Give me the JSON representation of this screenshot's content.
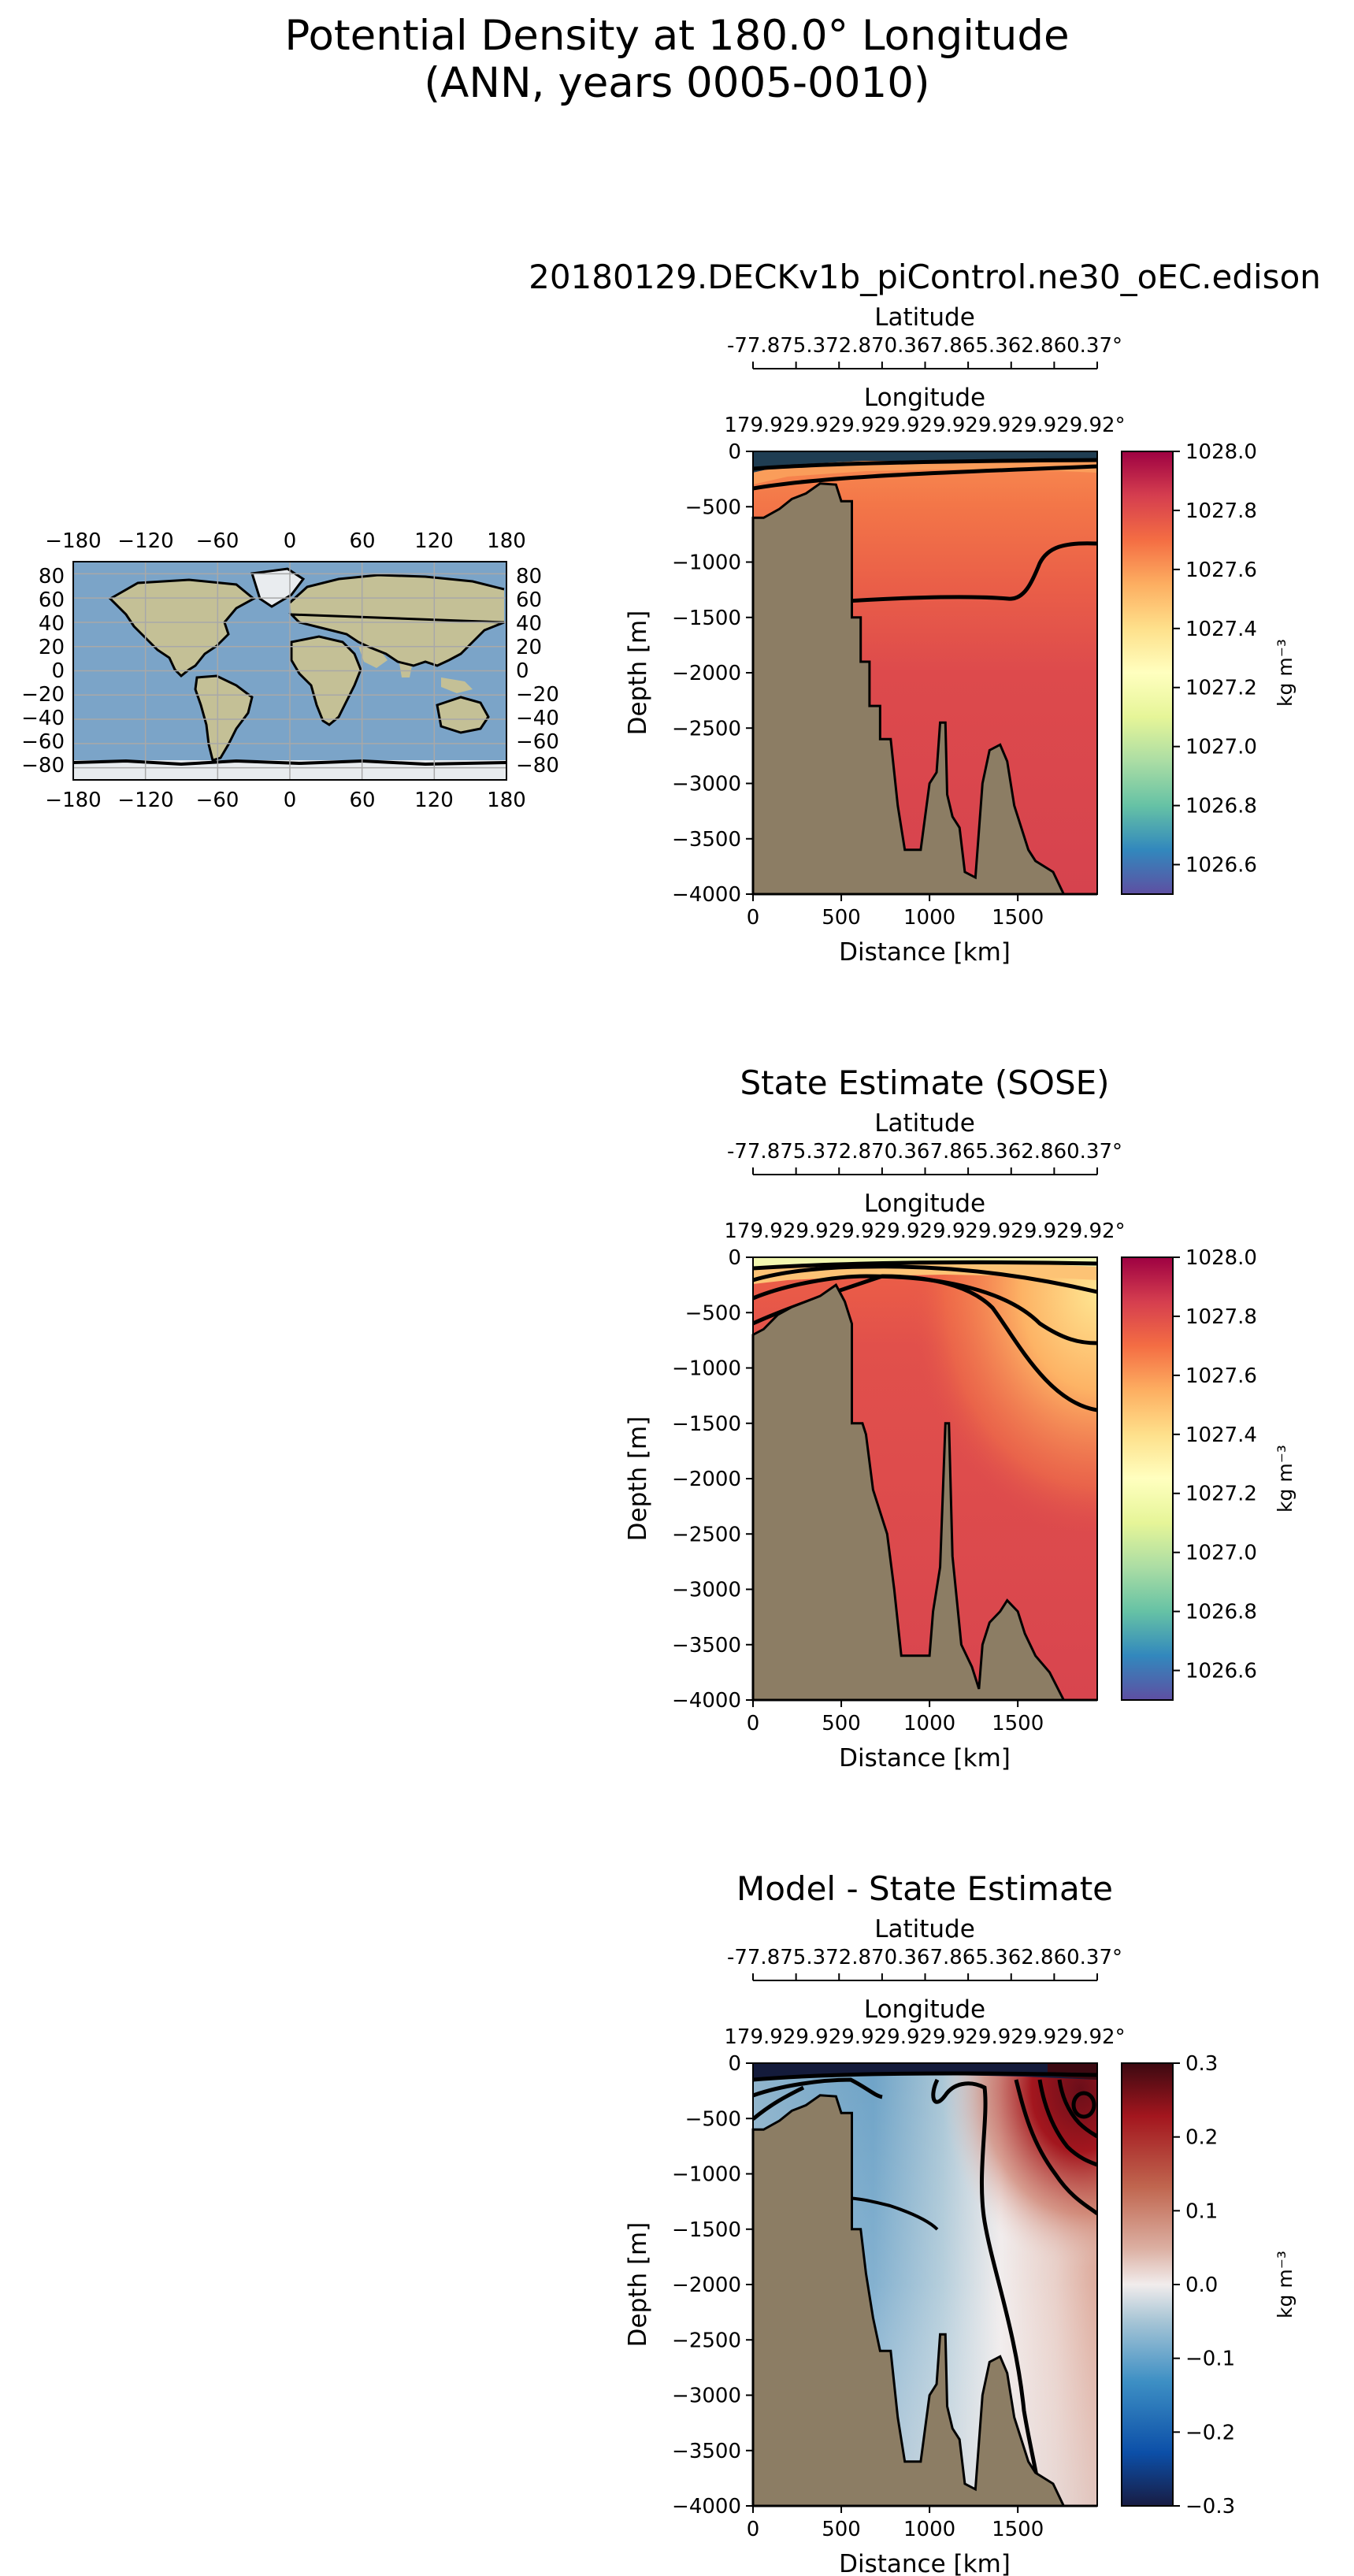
{
  "figure": {
    "title_line1": "Potential Density at 180.0° Longitude",
    "title_line2": "(ANN, years 0005-0010)"
  },
  "map": {
    "x_ticks": [
      "−180",
      "−120",
      "−60",
      "0",
      "60",
      "120",
      "180"
    ],
    "y_ticks": [
      "80",
      "60",
      "40",
      "20",
      "0",
      "−20",
      "−40",
      "−60",
      "−80"
    ],
    "colors": {
      "ocean": "#7ba4c8",
      "land": "#c4c096",
      "ice": "#e8ecef",
      "grid": "#a8a8a8"
    }
  },
  "chart_data": [
    {
      "type": "heatmap",
      "title": "20180129.DECKv1b_piControl.ne30_oEC.edison",
      "xlabel": "Distance [km]",
      "ylabel": "Depth [m]",
      "top_axis_1_label": "Latitude",
      "top_axis_1_ticks": "-77.875.372.870.367.865.362.860.37°",
      "top_axis_2_label": "Longitude",
      "top_axis_2_ticks": "179.929.929.929.929.929.929.929.92°",
      "xlim": [
        0,
        1950
      ],
      "ylim": [
        -4000,
        0
      ],
      "x_ticks": [
        "0",
        "500",
        "1000",
        "1500"
      ],
      "y_ticks": [
        "0",
        "−500",
        "−1000",
        "−1500",
        "−2000",
        "−2500",
        "−3000",
        "−3500",
        "−4000"
      ],
      "colorbar_label": "kg m⁻³",
      "colorbar_range": [
        1026.5,
        1028.0
      ],
      "colorbar_ticks": [
        "1028.0",
        "1027.8",
        "1027.6",
        "1027.4",
        "1027.2",
        "1027.0",
        "1026.8",
        "1026.6"
      ],
      "colormap": "Spectral_r",
      "bathymetry_km_depth": [
        [
          0,
          -600
        ],
        [
          60,
          -600
        ],
        [
          150,
          -520
        ],
        [
          220,
          -430
        ],
        [
          300,
          -380
        ],
        [
          380,
          -290
        ],
        [
          470,
          -300
        ],
        [
          500,
          -450
        ],
        [
          560,
          -450
        ],
        [
          560,
          -1500
        ],
        [
          610,
          -1500
        ],
        [
          610,
          -1900
        ],
        [
          660,
          -1900
        ],
        [
          660,
          -2300
        ],
        [
          720,
          -2300
        ],
        [
          720,
          -2600
        ],
        [
          780,
          -2600
        ],
        [
          820,
          -3200
        ],
        [
          860,
          -3600
        ],
        [
          950,
          -3600
        ],
        [
          1000,
          -3000
        ],
        [
          1040,
          -2900
        ],
        [
          1060,
          -2450
        ],
        [
          1090,
          -2450
        ],
        [
          1100,
          -3100
        ],
        [
          1130,
          -3300
        ],
        [
          1170,
          -3400
        ],
        [
          1200,
          -3800
        ],
        [
          1260,
          -3850
        ],
        [
          1300,
          -3000
        ],
        [
          1340,
          -2700
        ],
        [
          1400,
          -2650
        ],
        [
          1440,
          -2800
        ],
        [
          1480,
          -3200
        ],
        [
          1520,
          -3400
        ],
        [
          1560,
          -3600
        ],
        [
          1600,
          -3700
        ],
        [
          1650,
          -3750
        ],
        [
          1700,
          -3800
        ],
        [
          1760,
          -4000
        ]
      ]
    },
    {
      "type": "heatmap",
      "title": "State Estimate (SOSE)",
      "xlabel": "Distance [km]",
      "ylabel": "Depth [m]",
      "top_axis_1_label": "Latitude",
      "top_axis_1_ticks": "-77.875.372.870.367.865.362.860.37°",
      "top_axis_2_label": "Longitude",
      "top_axis_2_ticks": "179.929.929.929.929.929.929.929.92°",
      "xlim": [
        0,
        1950
      ],
      "ylim": [
        -4000,
        0
      ],
      "x_ticks": [
        "0",
        "500",
        "1000",
        "1500"
      ],
      "y_ticks": [
        "0",
        "−500",
        "−1000",
        "−1500",
        "−2000",
        "−2500",
        "−3000",
        "−3500",
        "−4000"
      ],
      "colorbar_label": "kg m⁻³",
      "colorbar_range": [
        1026.5,
        1028.0
      ],
      "colorbar_ticks": [
        "1028.0",
        "1027.8",
        "1027.6",
        "1027.4",
        "1027.2",
        "1027.0",
        "1026.8",
        "1026.6"
      ],
      "colormap": "Spectral_r",
      "bathymetry_km_depth": [
        [
          0,
          -700
        ],
        [
          60,
          -650
        ],
        [
          140,
          -520
        ],
        [
          220,
          -450
        ],
        [
          300,
          -400
        ],
        [
          380,
          -350
        ],
        [
          470,
          -250
        ],
        [
          520,
          -400
        ],
        [
          560,
          -600
        ],
        [
          560,
          -1500
        ],
        [
          620,
          -1500
        ],
        [
          640,
          -1600
        ],
        [
          680,
          -2100
        ],
        [
          720,
          -2300
        ],
        [
          760,
          -2500
        ],
        [
          800,
          -3000
        ],
        [
          840,
          -3600
        ],
        [
          1000,
          -3600
        ],
        [
          1020,
          -3200
        ],
        [
          1060,
          -2800
        ],
        [
          1090,
          -1500
        ],
        [
          1110,
          -1500
        ],
        [
          1130,
          -2700
        ],
        [
          1180,
          -3500
        ],
        [
          1240,
          -3700
        ],
        [
          1280,
          -3900
        ],
        [
          1300,
          -3500
        ],
        [
          1340,
          -3300
        ],
        [
          1400,
          -3200
        ],
        [
          1440,
          -3100
        ],
        [
          1500,
          -3200
        ],
        [
          1540,
          -3400
        ],
        [
          1600,
          -3600
        ],
        [
          1680,
          -3750
        ],
        [
          1760,
          -4000
        ]
      ]
    },
    {
      "type": "heatmap",
      "title": "Model - State Estimate",
      "xlabel": "Distance [km]",
      "ylabel": "Depth [m]",
      "top_axis_1_label": "Latitude",
      "top_axis_1_ticks": "-77.875.372.870.367.865.362.860.37°",
      "top_axis_2_label": "Longitude",
      "top_axis_2_ticks": "179.929.929.929.929.929.929.929.92°",
      "xlim": [
        0,
        1950
      ],
      "ylim": [
        -4000,
        0
      ],
      "x_ticks": [
        "0",
        "500",
        "1000",
        "1500"
      ],
      "y_ticks": [
        "0",
        "−500",
        "−1000",
        "−1500",
        "−2000",
        "−2500",
        "−3000",
        "−3500",
        "−4000"
      ],
      "colorbar_label": "kg m⁻³",
      "colorbar_range": [
        -0.3,
        0.3
      ],
      "colorbar_ticks": [
        "0.3",
        "0.2",
        "0.1",
        "0.0",
        "−0.1",
        "−0.2",
        "−0.3"
      ],
      "colormap": "balance",
      "bathymetry_km_depth": [
        [
          0,
          -600
        ],
        [
          60,
          -600
        ],
        [
          150,
          -520
        ],
        [
          220,
          -430
        ],
        [
          300,
          -380
        ],
        [
          380,
          -290
        ],
        [
          470,
          -300
        ],
        [
          500,
          -450
        ],
        [
          560,
          -450
        ],
        [
          560,
          -1500
        ],
        [
          610,
          -1500
        ],
        [
          640,
          -1900
        ],
        [
          680,
          -2300
        ],
        [
          720,
          -2600
        ],
        [
          780,
          -2600
        ],
        [
          820,
          -3200
        ],
        [
          860,
          -3600
        ],
        [
          950,
          -3600
        ],
        [
          1000,
          -3000
        ],
        [
          1040,
          -2900
        ],
        [
          1060,
          -2450
        ],
        [
          1090,
          -2450
        ],
        [
          1100,
          -3100
        ],
        [
          1130,
          -3300
        ],
        [
          1170,
          -3400
        ],
        [
          1200,
          -3800
        ],
        [
          1260,
          -3850
        ],
        [
          1300,
          -3000
        ],
        [
          1340,
          -2700
        ],
        [
          1400,
          -2650
        ],
        [
          1440,
          -2800
        ],
        [
          1480,
          -3200
        ],
        [
          1520,
          -3400
        ],
        [
          1560,
          -3600
        ],
        [
          1600,
          -3700
        ],
        [
          1650,
          -3750
        ],
        [
          1700,
          -3800
        ],
        [
          1760,
          -4000
        ]
      ]
    }
  ]
}
